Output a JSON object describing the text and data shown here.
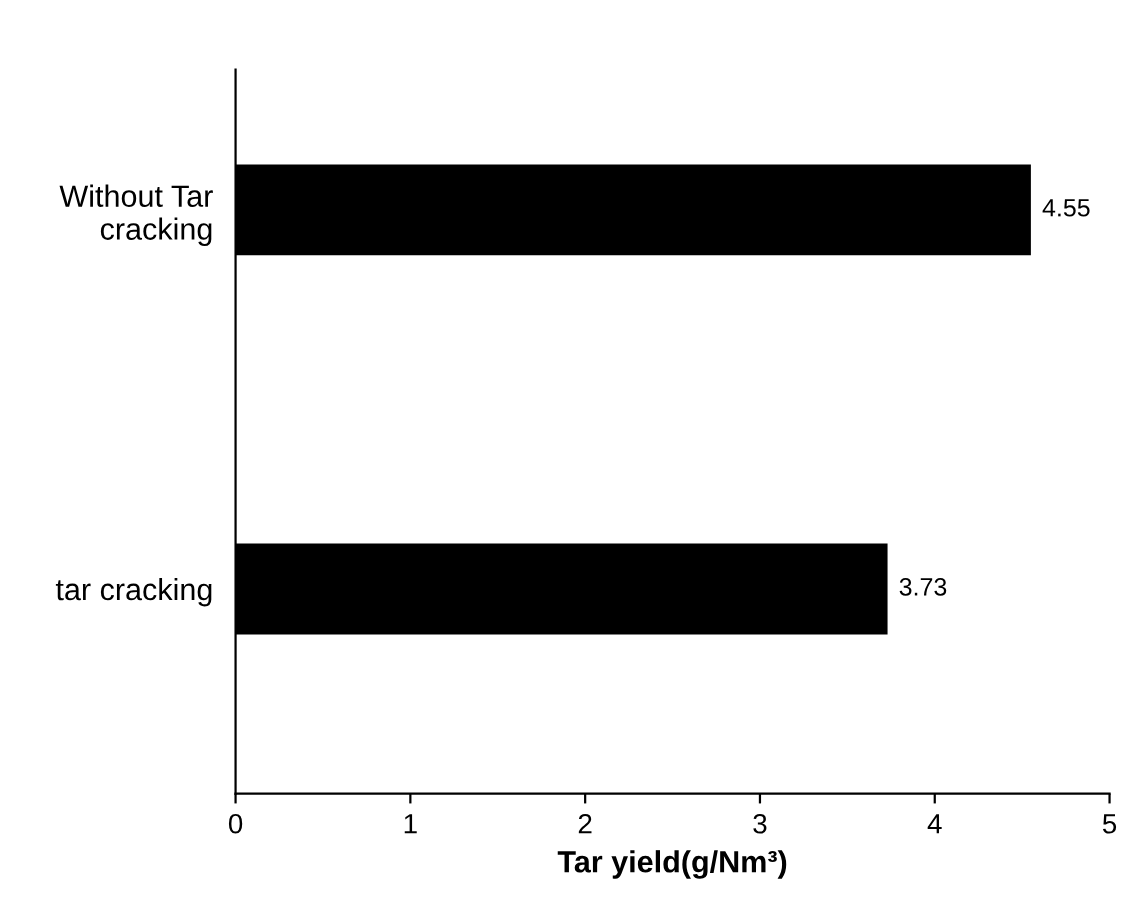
{
  "chart_data": {
    "type": "bar",
    "orientation": "horizontal",
    "categories": [
      "Without Tar\ncracking",
      "tar cracking"
    ],
    "values": [
      4.55,
      3.73
    ],
    "color": "#000000",
    "xlim": [
      0,
      5
    ],
    "xticks": [
      0,
      1,
      2,
      3,
      4,
      5
    ],
    "xlabel": "Tar yield(g/Nm³)",
    "data_labels": true,
    "grid": false,
    "legend": false
  }
}
